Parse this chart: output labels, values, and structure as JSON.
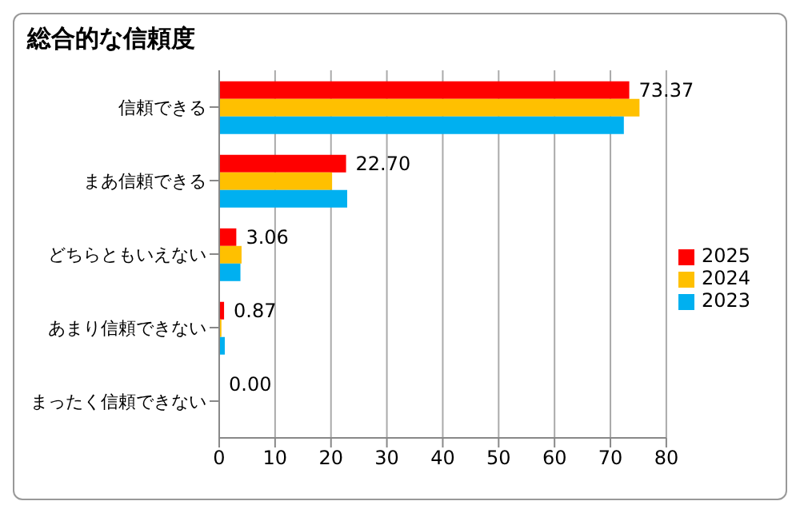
{
  "chart_data": {
    "type": "bar",
    "title": "総合的な信頼度",
    "orientation": "horizontal",
    "categories": [
      "信頼できる",
      "まあ信頼できる",
      "どちらともいえない",
      "あまり信頼できない",
      "まったく信頼できない"
    ],
    "series": [
      {
        "name": "2025",
        "color": "#ff0000",
        "values": [
          73.37,
          22.7,
          3.06,
          0.87,
          0.0
        ],
        "value_labels": [
          "73.37",
          "22.70",
          "3.06",
          "0.87",
          "0.00"
        ]
      },
      {
        "name": "2024",
        "color": "#ffc000",
        "values": [
          75.2,
          20.2,
          4.0,
          0.4,
          0
        ]
      },
      {
        "name": "2023",
        "color": "#00b0f0",
        "values": [
          72.4,
          22.9,
          3.8,
          1.0,
          0
        ]
      }
    ],
    "xlim": [
      0,
      80
    ],
    "xticks": [
      0,
      10,
      20,
      30,
      40,
      50,
      60,
      70,
      80
    ],
    "grid": "x",
    "legend": "right"
  }
}
